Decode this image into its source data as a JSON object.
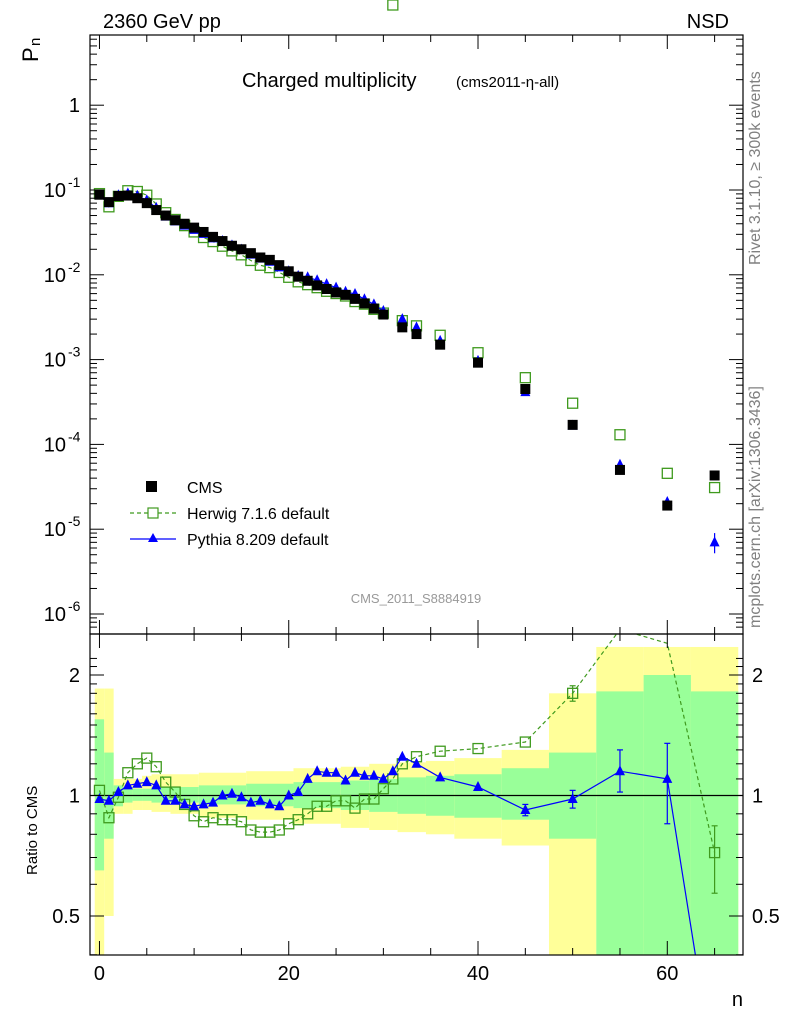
{
  "header": {
    "left": "2360 GeV pp",
    "right": "NSD"
  },
  "side": {
    "rivet": "Rivet 3.1.10, ≥ 300k events",
    "mcplots": "mcplots.cern.ch [arXiv:1306.3436]"
  },
  "chart_data": {
    "type": "scatter",
    "title": "Charged multiplicity",
    "title_suffix": "(cms2011-η-all)",
    "analysis_label": "CMS_2011_S8884919",
    "xlabel": "n",
    "ylabel": "P",
    "ylabel_sub": "n",
    "ratio_ylabel": "Ratio to CMS",
    "xlim": [
      -1,
      68
    ],
    "ylim": [
      4e-07,
      6.0
    ],
    "ylog": true,
    "ratio_ylim": [
      0.35,
      2.3
    ],
    "ratio_ylog": true,
    "x_ticks": [
      "0",
      "20",
      "40",
      "60"
    ],
    "y_ticks_main": [
      {
        "base": "10",
        "exp": "-6",
        "value": 1e-06
      },
      {
        "base": "10",
        "exp": "-5",
        "value": 1e-05
      },
      {
        "base": "10",
        "exp": "-4",
        "value": 0.0001
      },
      {
        "base": "10",
        "exp": "-3",
        "value": 0.001
      },
      {
        "base": "10",
        "exp": "-2",
        "value": 0.01
      },
      {
        "base": "10",
        "exp": "-1",
        "value": 0.1
      },
      {
        "base": "1",
        "exp": "",
        "value": 1
      }
    ],
    "y_ticks_ratio": [
      {
        "label": "0.5",
        "value": 0.5
      },
      {
        "label": "1",
        "value": 1
      },
      {
        "label": "2",
        "value": 2
      }
    ],
    "legend": {
      "position": "bottom-left",
      "entries": [
        "CMS",
        "Herwig 7.1.6 default",
        "Pythia 8.209 default"
      ]
    },
    "colors": {
      "data": "#000000",
      "herwig": "#3f9a1e",
      "pythia": "#0000ff",
      "band_inner": "#99ff99",
      "band_outer": "#ffff99"
    },
    "data_points": [
      {
        "x": 0,
        "y": 0.088
      },
      {
        "x": 1,
        "y": 0.072
      },
      {
        "x": 2,
        "y": 0.085
      },
      {
        "x": 3,
        "y": 0.086
      },
      {
        "x": 4,
        "y": 0.08
      },
      {
        "x": 5,
        "y": 0.07
      },
      {
        "x": 6,
        "y": 0.058
      },
      {
        "x": 7,
        "y": 0.05
      },
      {
        "x": 8,
        "y": 0.044
      },
      {
        "x": 9,
        "y": 0.04
      },
      {
        "x": 10,
        "y": 0.036
      },
      {
        "x": 11,
        "y": 0.032
      },
      {
        "x": 12,
        "y": 0.028
      },
      {
        "x": 13,
        "y": 0.025
      },
      {
        "x": 14,
        "y": 0.022
      },
      {
        "x": 15,
        "y": 0.02
      },
      {
        "x": 16,
        "y": 0.018
      },
      {
        "x": 17,
        "y": 0.016
      },
      {
        "x": 18,
        "y": 0.015
      },
      {
        "x": 19,
        "y": 0.013
      },
      {
        "x": 20,
        "y": 0.011
      },
      {
        "x": 21,
        "y": 0.0095
      },
      {
        "x": 22,
        "y": 0.0085
      },
      {
        "x": 23,
        "y": 0.0075
      },
      {
        "x": 24,
        "y": 0.0068
      },
      {
        "x": 25,
        "y": 0.0062
      },
      {
        "x": 26,
        "y": 0.0058
      },
      {
        "x": 27,
        "y": 0.0052
      },
      {
        "x": 28,
        "y": 0.0046
      },
      {
        "x": 29,
        "y": 0.004
      },
      {
        "x": 30,
        "y": 0.0034
      },
      {
        "x": 32,
        "y": 0.0024
      },
      {
        "x": 33.5,
        "y": 0.002
      },
      {
        "x": 36,
        "y": 0.0015
      },
      {
        "x": 40,
        "y": 0.00092
      },
      {
        "x": 45,
        "y": 0.00045
      },
      {
        "x": 50,
        "y": 0.00017
      },
      {
        "x": 55,
        "y": 5e-05
      },
      {
        "x": 60,
        "y": 1.9e-05
      },
      {
        "x": 65,
        "y": 4.3e-05
      }
    ],
    "herwig_ratio": [
      {
        "x": 0,
        "r": 1.03
      },
      {
        "x": 1,
        "r": 0.88
      },
      {
        "x": 2,
        "r": 0.99
      },
      {
        "x": 3,
        "r": 1.14
      },
      {
        "x": 4,
        "r": 1.2
      },
      {
        "x": 5,
        "r": 1.24
      },
      {
        "x": 6,
        "r": 1.18
      },
      {
        "x": 7,
        "r": 1.08
      },
      {
        "x": 8,
        "r": 1.02
      },
      {
        "x": 9,
        "r": 0.95
      },
      {
        "x": 10,
        "r": 0.89
      },
      {
        "x": 11,
        "r": 0.86
      },
      {
        "x": 12,
        "r": 0.88
      },
      {
        "x": 13,
        "r": 0.87
      },
      {
        "x": 14,
        "r": 0.87
      },
      {
        "x": 15,
        "r": 0.86
      },
      {
        "x": 16,
        "r": 0.82
      },
      {
        "x": 17,
        "r": 0.81
      },
      {
        "x": 18,
        "r": 0.81
      },
      {
        "x": 19,
        "r": 0.82
      },
      {
        "x": 20,
        "r": 0.85
      },
      {
        "x": 21,
        "r": 0.87
      },
      {
        "x": 22,
        "r": 0.9
      },
      {
        "x": 23,
        "r": 0.94
      },
      {
        "x": 24,
        "r": 0.94
      },
      {
        "x": 25,
        "r": 0.97
      },
      {
        "x": 26,
        "r": 0.97
      },
      {
        "x": 27,
        "r": 0.93
      },
      {
        "x": 28,
        "r": 0.98
      },
      {
        "x": 29,
        "r": 0.98
      },
      {
        "x": 30,
        "r": 1.04
      },
      {
        "x": 31,
        "r": 1.1
      },
      {
        "x": 32,
        "r": 1.2
      },
      {
        "x": 33.5,
        "r": 1.25
      },
      {
        "x": 36,
        "r": 1.29
      },
      {
        "x": 40,
        "r": 1.31
      },
      {
        "x": 45,
        "r": 1.36
      },
      {
        "x": 50,
        "r": 1.8
      },
      {
        "x": 55,
        "r": 2.6
      },
      {
        "x": 60,
        "r": 2.4
      },
      {
        "x": 65,
        "r": 0.72
      }
    ],
    "herwig_ratio_err": [
      {
        "x": 50,
        "r": 1.8,
        "lo": 1.72,
        "hi": 1.88
      },
      {
        "x": 65,
        "r": 0.72,
        "lo": 0.57,
        "hi": 0.84
      }
    ],
    "pythia_ratio": [
      {
        "x": 0,
        "r": 0.98
      },
      {
        "x": 1,
        "r": 0.97
      },
      {
        "x": 2,
        "r": 1.02
      },
      {
        "x": 3,
        "r": 1.06
      },
      {
        "x": 4,
        "r": 1.07
      },
      {
        "x": 5,
        "r": 1.08
      },
      {
        "x": 6,
        "r": 1.06
      },
      {
        "x": 7,
        "r": 0.97
      },
      {
        "x": 8,
        "r": 0.97
      },
      {
        "x": 9,
        "r": 0.95
      },
      {
        "x": 10,
        "r": 0.94
      },
      {
        "x": 11,
        "r": 0.95
      },
      {
        "x": 12,
        "r": 0.96
      },
      {
        "x": 13,
        "r": 1.0
      },
      {
        "x": 14,
        "r": 1.01
      },
      {
        "x": 15,
        "r": 0.99
      },
      {
        "x": 16,
        "r": 0.96
      },
      {
        "x": 17,
        "r": 0.97
      },
      {
        "x": 18,
        "r": 0.95
      },
      {
        "x": 19,
        "r": 0.94
      },
      {
        "x": 20,
        "r": 1.0
      },
      {
        "x": 21,
        "r": 1.02
      },
      {
        "x": 22,
        "r": 1.1
      },
      {
        "x": 23,
        "r": 1.15
      },
      {
        "x": 24,
        "r": 1.14
      },
      {
        "x": 25,
        "r": 1.14
      },
      {
        "x": 26,
        "r": 1.09
      },
      {
        "x": 27,
        "r": 1.14
      },
      {
        "x": 28,
        "r": 1.12
      },
      {
        "x": 29,
        "r": 1.12
      },
      {
        "x": 30,
        "r": 1.1
      },
      {
        "x": 31,
        "r": 1.15
      },
      {
        "x": 32,
        "r": 1.25
      },
      {
        "x": 33.5,
        "r": 1.2
      },
      {
        "x": 36,
        "r": 1.11
      },
      {
        "x": 40,
        "r": 1.05
      },
      {
        "x": 45,
        "r": 0.92
      },
      {
        "x": 50,
        "r": 0.98
      },
      {
        "x": 55,
        "r": 1.15
      },
      {
        "x": 60,
        "r": 1.1
      },
      {
        "x": 65,
        "r": 0.05
      }
    ],
    "pythia_ratio_err": [
      {
        "x": 45,
        "r": 0.92,
        "lo": 0.89,
        "hi": 0.95
      },
      {
        "x": 50,
        "r": 0.98,
        "lo": 0.93,
        "hi": 1.03
      },
      {
        "x": 55,
        "r": 1.15,
        "lo": 1.02,
        "hi": 1.3
      },
      {
        "x": 60,
        "r": 1.1,
        "lo": 0.85,
        "hi": 1.35
      }
    ],
    "bands": [
      {
        "x0": -0.5,
        "x1": 0.5,
        "inner": [
          0.65,
          1.55
        ],
        "outer": [
          0.4,
          1.85
        ]
      },
      {
        "x0": 0.5,
        "x1": 1.5,
        "inner": [
          0.78,
          1.28
        ],
        "outer": [
          0.5,
          1.85
        ]
      },
      {
        "x0": 1.5,
        "x1": 2.5,
        "inner": [
          0.94,
          1.06
        ],
        "outer": [
          0.9,
          1.1
        ]
      },
      {
        "x0": 2.5,
        "x1": 3.5,
        "inner": [
          0.96,
          1.05
        ],
        "outer": [
          0.9,
          1.1
        ]
      },
      {
        "x0": 3.5,
        "x1": 4.5,
        "inner": [
          0.97,
          1.04
        ],
        "outer": [
          0.92,
          1.1
        ]
      },
      {
        "x0": 4.5,
        "x1": 5.5,
        "inner": [
          0.97,
          1.04
        ],
        "outer": [
          0.92,
          1.12
        ]
      },
      {
        "x0": 5.5,
        "x1": 7.5,
        "inner": [
          0.96,
          1.05
        ],
        "outer": [
          0.91,
          1.13
        ]
      },
      {
        "x0": 7.5,
        "x1": 10.5,
        "inner": [
          0.96,
          1.05
        ],
        "outer": [
          0.9,
          1.13
        ]
      },
      {
        "x0": 10.5,
        "x1": 15.5,
        "inner": [
          0.95,
          1.06
        ],
        "outer": [
          0.88,
          1.14
        ]
      },
      {
        "x0": 15.5,
        "x1": 20.5,
        "inner": [
          0.94,
          1.07
        ],
        "outer": [
          0.87,
          1.15
        ]
      },
      {
        "x0": 20.5,
        "x1": 25.5,
        "inner": [
          0.93,
          1.08
        ],
        "outer": [
          0.85,
          1.17
        ]
      },
      {
        "x0": 25.5,
        "x1": 28.5,
        "inner": [
          0.92,
          1.09
        ],
        "outer": [
          0.83,
          1.18
        ]
      },
      {
        "x0": 28.5,
        "x1": 31.5,
        "inner": [
          0.91,
          1.1
        ],
        "outer": [
          0.82,
          1.2
        ]
      },
      {
        "x0": 31.5,
        "x1": 34.5,
        "inner": [
          0.9,
          1.11
        ],
        "outer": [
          0.81,
          1.21
        ]
      },
      {
        "x0": 34.5,
        "x1": 37.5,
        "inner": [
          0.89,
          1.12
        ],
        "outer": [
          0.8,
          1.22
        ]
      },
      {
        "x0": 37.5,
        "x1": 42.5,
        "inner": [
          0.88,
          1.13
        ],
        "outer": [
          0.78,
          1.24
        ]
      },
      {
        "x0": 42.5,
        "x1": 47.5,
        "inner": [
          0.87,
          1.17
        ],
        "outer": [
          0.75,
          1.3
        ]
      },
      {
        "x0": 47.5,
        "x1": 52.5,
        "inner": [
          0.78,
          1.28
        ],
        "outer": [
          0.3,
          1.8
        ]
      },
      {
        "x0": 52.5,
        "x1": 57.5,
        "inner": [
          0.4,
          1.82
        ],
        "outer": [
          0.3,
          2.4
        ]
      },
      {
        "x0": 57.5,
        "x1": 62.5,
        "inner": [
          0.3,
          2.0
        ],
        "outer": [
          0.3,
          2.4
        ]
      },
      {
        "x0": 62.5,
        "x1": 67.5,
        "inner": [
          0.3,
          1.82
        ],
        "outer": [
          0.3,
          2.4
        ]
      }
    ]
  }
}
